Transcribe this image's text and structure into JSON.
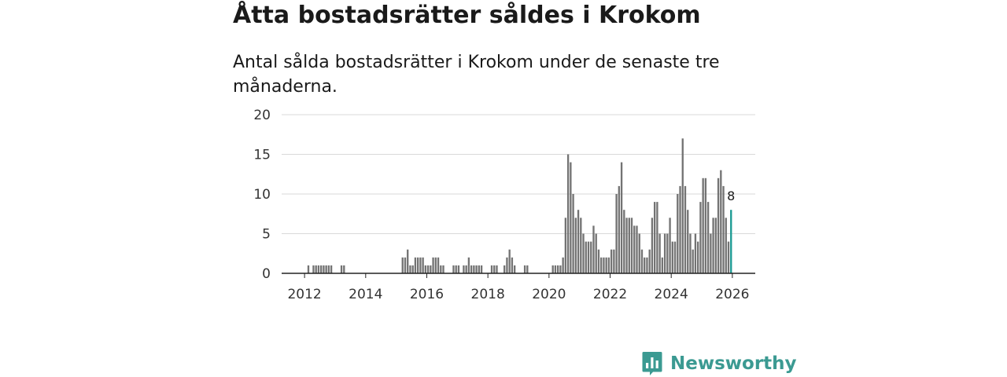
{
  "header": {
    "title": "Åtta bostadsrätter såldes i Krokom",
    "subtitle": "Antal sålda bostadsrätter i Krokom under de senaste tre månaderna."
  },
  "brand": {
    "name": "Newsworthy",
    "icon": "newsworthy-logo-icon"
  },
  "colors": {
    "bar": "#737373",
    "highlight": "#1a9a92",
    "grid": "#d9d9d9",
    "axis": "#222222",
    "brand": "#3b9a92"
  },
  "chart_data": {
    "type": "bar",
    "title": "Antal sålda bostadsrätter i Krokom",
    "xlabel": "",
    "ylabel": "",
    "ylim": [
      0,
      20
    ],
    "yticks": [
      0,
      5,
      10,
      15,
      20
    ],
    "xlim": [
      2011.25,
      2026.75
    ],
    "xticks": [
      2012,
      2014,
      2016,
      2018,
      2020,
      2022,
      2024,
      2026
    ],
    "start": "2012-01",
    "values": [
      0,
      1,
      0,
      1,
      1,
      1,
      1,
      1,
      1,
      1,
      1,
      0,
      0,
      0,
      1,
      1,
      0,
      0,
      0,
      0,
      0,
      0,
      0,
      0,
      0,
      0,
      0,
      0,
      0,
      0,
      0,
      0,
      0,
      0,
      0,
      0,
      0,
      0,
      2,
      2,
      3,
      1,
      1,
      2,
      2,
      2,
      2,
      1,
      1,
      1,
      2,
      2,
      2,
      1,
      1,
      0,
      0,
      0,
      1,
      1,
      1,
      0,
      1,
      1,
      2,
      1,
      1,
      1,
      1,
      1,
      0,
      0,
      0,
      1,
      1,
      1,
      0,
      0,
      1,
      2,
      3,
      2,
      1,
      0,
      0,
      0,
      1,
      1,
      0,
      0,
      0,
      0,
      0,
      0,
      0,
      0,
      0,
      1,
      1,
      1,
      1,
      2,
      7,
      15,
      14,
      10,
      7,
      8,
      7,
      5,
      4,
      4,
      4,
      6,
      5,
      3,
      2,
      2,
      2,
      2,
      3,
      3,
      10,
      11,
      14,
      8,
      7,
      7,
      7,
      6,
      6,
      5,
      3,
      2,
      2,
      3,
      7,
      9,
      9,
      5,
      2,
      5,
      5,
      7,
      4,
      4,
      10,
      11,
      17,
      11,
      8,
      5,
      3,
      5,
      4,
      9,
      12,
      12,
      9,
      5,
      7,
      7,
      12,
      13,
      11,
      7,
      4,
      8
    ],
    "highlight": {
      "label": "8",
      "value": 8,
      "month": "2025-12"
    }
  }
}
